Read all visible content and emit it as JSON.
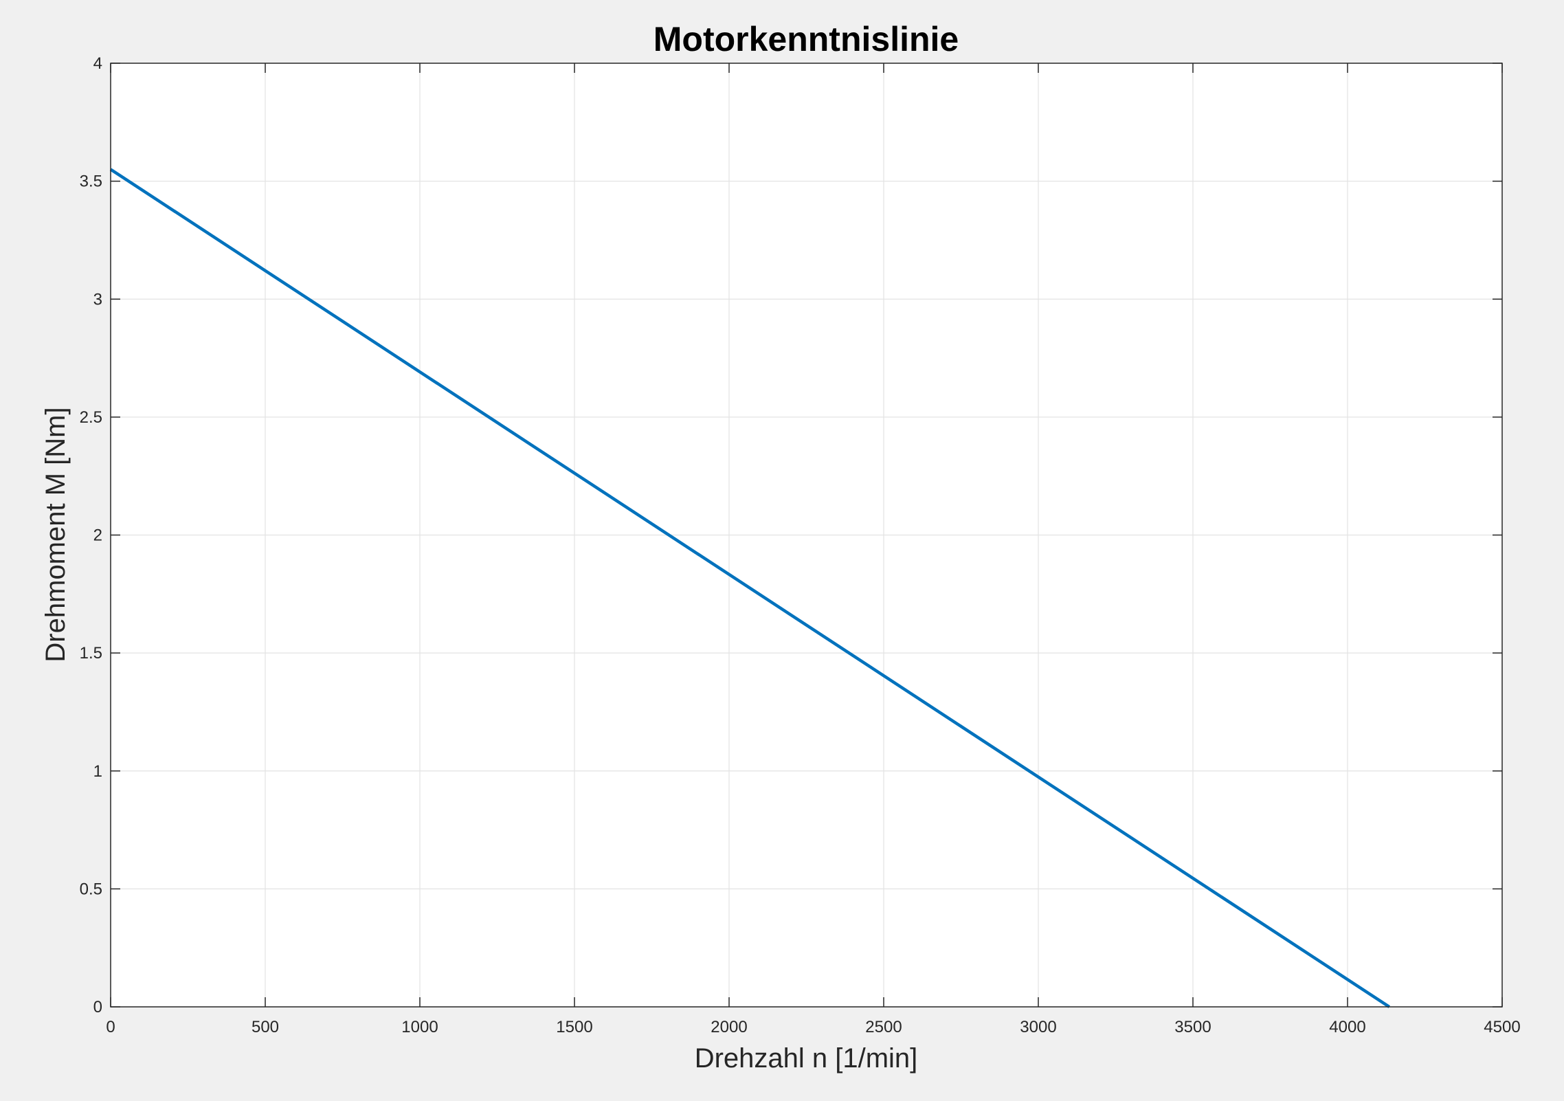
{
  "chart_data": {
    "type": "line",
    "title": "Motorkenntnislinie",
    "xlabel": "Drehzahl n [1/min]",
    "ylabel": "Drehmoment M [Nm]",
    "xlim": [
      0,
      4500
    ],
    "ylim": [
      0,
      4
    ],
    "x_ticks": [
      0,
      500,
      1000,
      1500,
      2000,
      2500,
      3000,
      3500,
      4000,
      4500
    ],
    "y_ticks": [
      0,
      0.5,
      1,
      1.5,
      2,
      2.5,
      3,
      3.5,
      4
    ],
    "x_tick_labels": [
      "0",
      "500",
      "1000",
      "1500",
      "2000",
      "2500",
      "3000",
      "3500",
      "4000",
      "4500"
    ],
    "y_tick_labels": [
      "0",
      "0.5",
      "1",
      "1.5",
      "2",
      "2.5",
      "3",
      "3.5",
      "4"
    ],
    "grid": true,
    "box": true,
    "legend": "none",
    "series": [
      {
        "color": "#0072bd",
        "x": [
          0,
          4135
        ],
        "y": [
          3.55,
          0
        ]
      }
    ]
  }
}
